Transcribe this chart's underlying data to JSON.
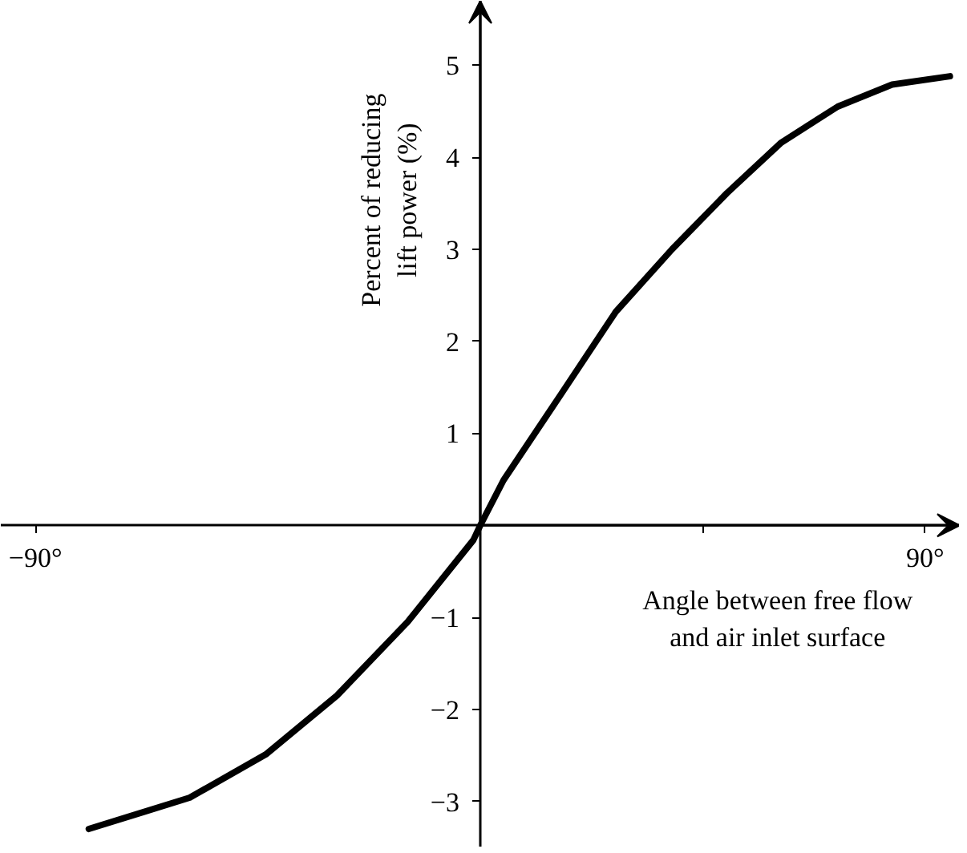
{
  "chart_data": {
    "type": "line",
    "xlabel": "Angle between free flow\nand air inlet surface",
    "ylabel": "Percent of reducing\nlift power (%)",
    "color": "#000000",
    "x": [
      -79.2,
      -58.8,
      -43.4,
      -29,
      -14.7,
      -1.4,
      0,
      4.7,
      16.4,
      27.4,
      38.8,
      49.9,
      60.9,
      72.3,
      83.3,
      95
    ],
    "values": [
      -3.3,
      -2.96,
      -2.49,
      -1.85,
      -1.05,
      -0.16,
      0,
      0.49,
      1.43,
      2.32,
      3.0,
      3.61,
      4.16,
      4.55,
      4.79,
      4.88
    ],
    "xlim": [
      -97,
      97
    ],
    "ylim": [
      -3.5,
      5.7
    ],
    "xticks": [
      {
        "value": -90,
        "label": "−90°"
      },
      {
        "value": 45,
        "label": null
      },
      {
        "value": 90,
        "label": "90°"
      }
    ],
    "yticks": [
      {
        "value": -3,
        "label": "−3"
      },
      {
        "value": -2,
        "label": "−2"
      },
      {
        "value": -1,
        "label": "−1"
      },
      1,
      2,
      3,
      4,
      5
    ]
  }
}
